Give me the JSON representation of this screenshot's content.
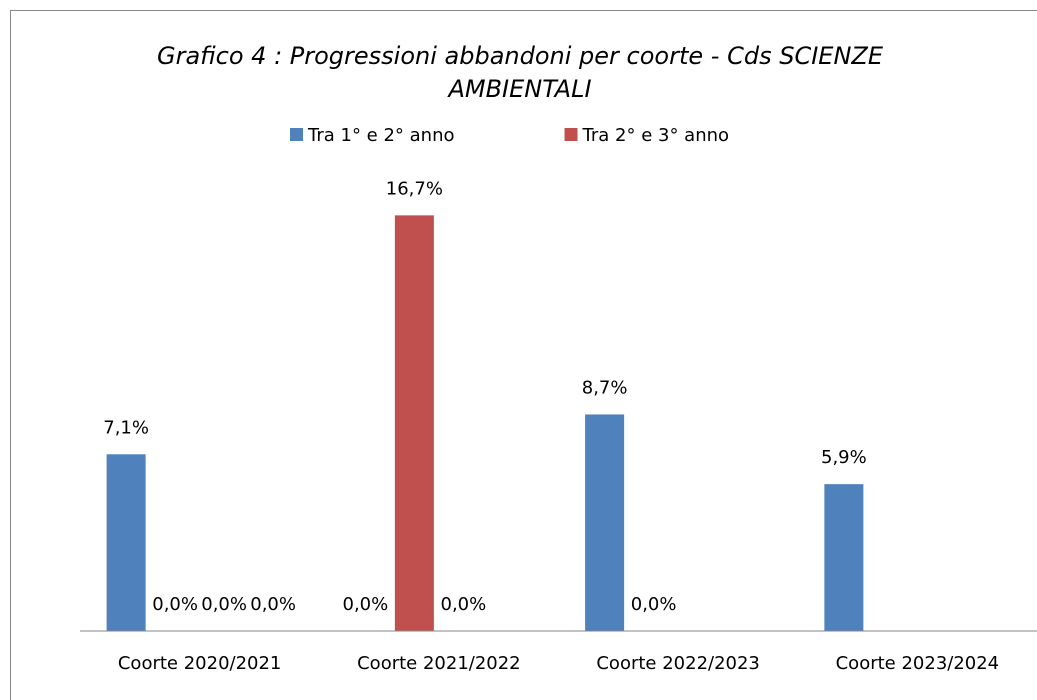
{
  "chart_data": {
    "type": "bar",
    "title": "Grafico 4 : Progressioni abbandoni per coorte - Cds SCIENZE AMBIENTALI",
    "categories": [
      "Coorte 2020/2021",
      "Coorte 2021/2022",
      "Coorte 2022/2023",
      "Coorte 2023/2024"
    ],
    "series": [
      {
        "name": "Tra 1° e 2° anno",
        "color": "#4f81bd",
        "values": [
          7.1,
          0,
          8.7,
          5.9
        ],
        "value_labels": [
          "7,1%",
          "0,0%",
          "8,7%",
          "5,9%"
        ]
      },
      {
        "name": "Tra 2° e 3° anno",
        "color": "#c0504d",
        "values": [
          0,
          16.7,
          0,
          null
        ],
        "value_labels": [
          "0,0%",
          "16,7%",
          "0,0%",
          null
        ]
      },
      {
        "color": "#9bbb59",
        "values": [
          0,
          0,
          null,
          null
        ],
        "value_labels": [
          "0,0%",
          "0,0%",
          null,
          null
        ]
      },
      {
        "color": "#8064a2",
        "values": [
          0,
          null,
          null,
          null
        ],
        "value_labels": [
          "0,0%",
          null,
          null,
          null
        ]
      }
    ],
    "ylim": [
      0,
      18
    ],
    "legend": "top"
  }
}
